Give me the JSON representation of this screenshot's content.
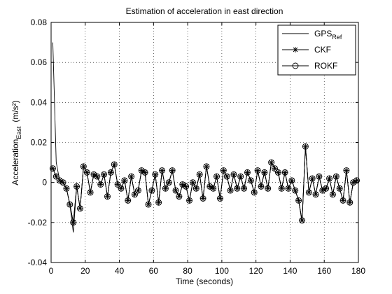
{
  "chart_data": {
    "type": "line",
    "title": "Estimation of  acceleration in east direction",
    "xlabel": "Time (seconds)",
    "ylabel": {
      "main": "Acceleration",
      "sub": "East",
      "unit": "(m/s²)"
    },
    "xlim": [
      0,
      180
    ],
    "xticks": [
      0,
      20,
      40,
      60,
      80,
      100,
      120,
      140,
      160,
      180
    ],
    "ylim": [
      -0.04,
      0.08
    ],
    "yticks": [
      -0.04,
      -0.02,
      0,
      0.02,
      0.04,
      0.06,
      0.08
    ],
    "grid": true,
    "legend": "upper right",
    "x": [
      1,
      3,
      5,
      7,
      9,
      11,
      13,
      15,
      17,
      19,
      21,
      23,
      25,
      27,
      29,
      31,
      33,
      35,
      37,
      39,
      41,
      43,
      45,
      47,
      49,
      51,
      53,
      55,
      57,
      59,
      61,
      63,
      65,
      67,
      69,
      71,
      73,
      75,
      77,
      79,
      81,
      83,
      85,
      87,
      89,
      91,
      93,
      95,
      97,
      99,
      101,
      103,
      105,
      107,
      109,
      111,
      113,
      115,
      117,
      119,
      121,
      123,
      125,
      127,
      129,
      131,
      133,
      135,
      137,
      139,
      141,
      143,
      145,
      147,
      149,
      151,
      153,
      155,
      157,
      159,
      161,
      163,
      165,
      167,
      169,
      171,
      173,
      175,
      177,
      179
    ],
    "series": [
      {
        "name": "GPS",
        "name_subscript": "Ref",
        "color": "#000000",
        "marker": "none",
        "values": [
          0.07,
          0.01,
          0.001,
          0,
          -0.003,
          -0.011,
          -0.025,
          -0.002,
          -0.013,
          0.008,
          0.005,
          -0.005,
          0.004,
          0.003,
          -0.001,
          0.004,
          -0.007,
          0.005,
          0.009,
          -0.001,
          -0.003,
          0.001,
          -0.009,
          0.003,
          -0.006,
          -0.004,
          0.006,
          0.005,
          -0.011,
          -0.004,
          0.004,
          -0.01,
          0.006,
          -0.003,
          0,
          0.006,
          -0.004,
          -0.007,
          -0.001,
          -0.002,
          -0.009,
          0,
          -0.003,
          0.004,
          -0.008,
          0.008,
          -0.002,
          -0.003,
          0.003,
          -0.008,
          0.006,
          0.003,
          -0.004,
          0.004,
          -0.003,
          0.003,
          -0.003,
          0.005,
          0.001,
          -0.005,
          0.006,
          -0.002,
          0.005,
          -0.003,
          0.01,
          0.007,
          0.005,
          -0.003,
          0.005,
          -0.003,
          0.001,
          -0.004,
          -0.009,
          -0.02,
          0.018,
          -0.005,
          0.002,
          -0.006,
          0.003,
          -0.004,
          -0.003,
          0.002,
          -0.006,
          0.003,
          -0.003,
          -0.009,
          0.006,
          -0.01,
          0,
          0.001
        ]
      },
      {
        "name": "CKF",
        "color": "#000000",
        "marker": "star",
        "values": [
          0.007,
          0.003,
          0.001,
          0,
          -0.003,
          -0.011,
          -0.02,
          -0.002,
          -0.013,
          0.008,
          0.005,
          -0.005,
          0.004,
          0.003,
          -0.001,
          0.004,
          -0.007,
          0.005,
          0.009,
          -0.001,
          -0.003,
          0.001,
          -0.009,
          0.003,
          -0.006,
          -0.004,
          0.006,
          0.005,
          -0.011,
          -0.004,
          0.004,
          -0.01,
          0.006,
          -0.003,
          0,
          0.006,
          -0.004,
          -0.007,
          -0.001,
          -0.002,
          -0.009,
          0,
          -0.003,
          0.004,
          -0.008,
          0.008,
          -0.002,
          -0.003,
          0.003,
          -0.008,
          0.006,
          0.003,
          -0.004,
          0.004,
          -0.003,
          0.003,
          -0.003,
          0.005,
          0.001,
          -0.005,
          0.006,
          -0.002,
          0.005,
          -0.003,
          0.01,
          0.007,
          0.005,
          -0.003,
          0.005,
          -0.003,
          0.001,
          -0.004,
          -0.009,
          -0.019,
          0.018,
          -0.005,
          0.002,
          -0.006,
          0.003,
          -0.004,
          -0.003,
          0.002,
          -0.006,
          0.003,
          -0.003,
          -0.009,
          0.006,
          -0.01,
          0,
          0.001
        ]
      },
      {
        "name": "ROKF",
        "color": "#000000",
        "marker": "circle",
        "values": [
          0.007,
          0.003,
          0.001,
          0,
          -0.003,
          -0.011,
          -0.02,
          -0.002,
          -0.013,
          0.008,
          0.005,
          -0.005,
          0.004,
          0.003,
          -0.001,
          0.004,
          -0.007,
          0.005,
          0.009,
          -0.001,
          -0.003,
          0.001,
          -0.009,
          0.003,
          -0.006,
          -0.004,
          0.006,
          0.005,
          -0.011,
          -0.004,
          0.004,
          -0.01,
          0.006,
          -0.003,
          0,
          0.006,
          -0.004,
          -0.007,
          -0.001,
          -0.002,
          -0.009,
          0,
          -0.003,
          0.004,
          -0.008,
          0.008,
          -0.002,
          -0.003,
          0.003,
          -0.008,
          0.006,
          0.003,
          -0.004,
          0.004,
          -0.003,
          0.003,
          -0.003,
          0.005,
          0.001,
          -0.005,
          0.006,
          -0.002,
          0.005,
          -0.003,
          0.01,
          0.007,
          0.005,
          -0.003,
          0.005,
          -0.003,
          0.001,
          -0.004,
          -0.009,
          -0.019,
          0.018,
          -0.005,
          0.002,
          -0.006,
          0.003,
          -0.004,
          -0.003,
          0.002,
          -0.006,
          0.003,
          -0.003,
          -0.009,
          0.006,
          -0.01,
          0,
          0.001
        ]
      }
    ]
  }
}
